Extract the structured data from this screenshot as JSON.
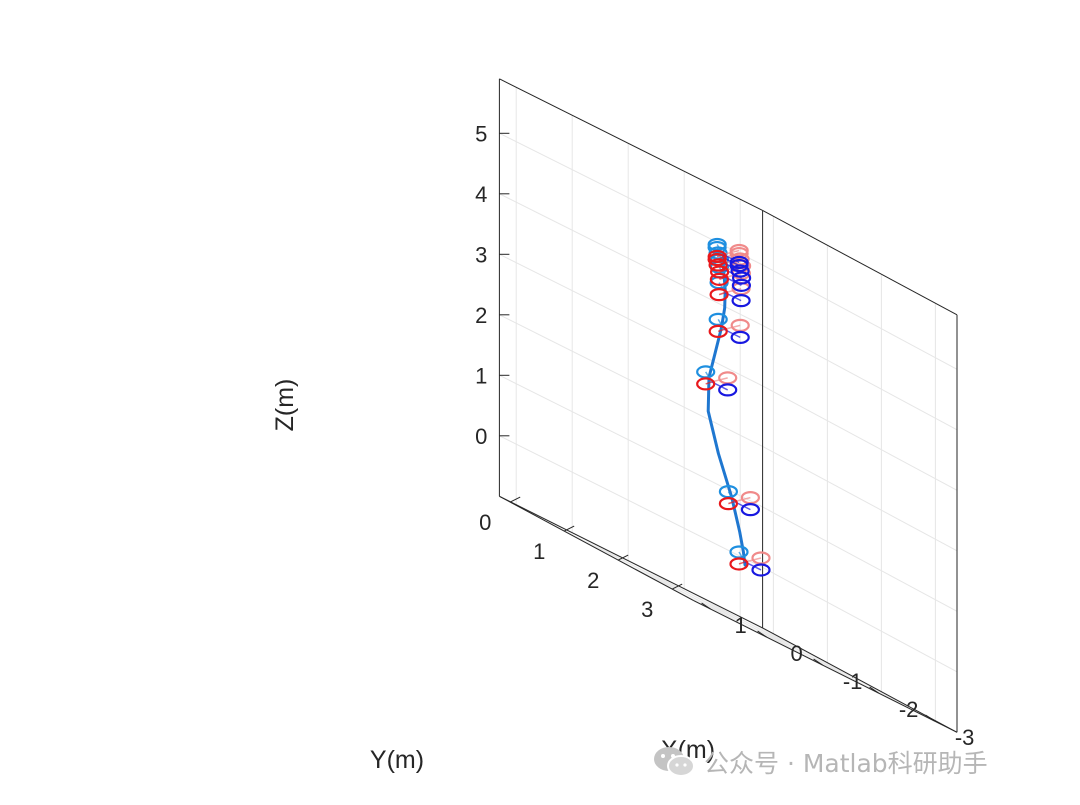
{
  "chart_data": {
    "type": "scatter",
    "plot_kind": "3d-trajectory",
    "title": "",
    "xlabel": "X(m)",
    "ylabel": "Y(m)",
    "zlabel": "Z(m)",
    "xlim": [
      -3.4,
      1.3
    ],
    "ylim": [
      -0.2,
      3.4
    ],
    "zlim": [
      -1,
      5.9
    ],
    "x_ticks": [
      "-3",
      "-2",
      "-1",
      "0",
      "1"
    ],
    "y_ticks": [
      "0",
      "1",
      "2",
      "3"
    ],
    "z_ticks": [
      "0",
      "1",
      "2",
      "3",
      "4",
      "5"
    ],
    "grid": true,
    "view": "3d-box-standard",
    "trajectory": {
      "color": "#1f77d0",
      "points": [
        {
          "x": 0.0,
          "y": 3.0,
          "z": 0.0
        },
        {
          "x": -0.02,
          "y": 2.95,
          "z": 0.2
        },
        {
          "x": -0.05,
          "y": 2.85,
          "z": 0.5
        },
        {
          "x": -0.1,
          "y": 2.65,
          "z": 1.0
        },
        {
          "x": -0.2,
          "y": 2.3,
          "z": 1.6
        },
        {
          "x": -0.5,
          "y": 1.8,
          "z": 2.2
        },
        {
          "x": -0.9,
          "y": 1.4,
          "z": 2.75
        },
        {
          "x": -1.3,
          "y": 1.1,
          "z": 3.2
        },
        {
          "x": -1.7,
          "y": 0.8,
          "z": 3.65
        },
        {
          "x": -2.0,
          "y": 0.55,
          "z": 4.0
        },
        {
          "x": -2.25,
          "y": 0.3,
          "z": 4.3
        },
        {
          "x": -2.4,
          "y": 0.12,
          "z": 4.55
        },
        {
          "x": -2.5,
          "y": 0.0,
          "z": 4.75
        },
        {
          "x": -2.55,
          "y": -0.05,
          "z": 4.85
        }
      ]
    },
    "drone_poses": [
      {
        "x": 0.0,
        "y": 3.0,
        "z": 0.05
      },
      {
        "x": -0.1,
        "y": 2.7,
        "z": 0.95
      },
      {
        "x": -0.9,
        "y": 1.45,
        "z": 2.7
      },
      {
        "x": -1.75,
        "y": 0.8,
        "z": 3.65
      },
      {
        "x": -2.2,
        "y": 0.35,
        "z": 4.25
      },
      {
        "x": -2.35,
        "y": 0.2,
        "z": 4.5
      },
      {
        "x": -2.45,
        "y": 0.1,
        "z": 4.62
      },
      {
        "x": -2.5,
        "y": 0.02,
        "z": 4.72
      },
      {
        "x": -2.55,
        "y": -0.05,
        "z": 4.8
      },
      {
        "x": -2.58,
        "y": -0.08,
        "z": 4.85
      }
    ],
    "rotor_colors": {
      "front_left": "#1e8fe0",
      "front_right": "#f08a8a",
      "rear_left": "#e8181c",
      "rear_right": "#1818e0"
    }
  },
  "watermark": {
    "text": "公众号 · Matlab科研助手",
    "icon": "wechat-icon"
  }
}
